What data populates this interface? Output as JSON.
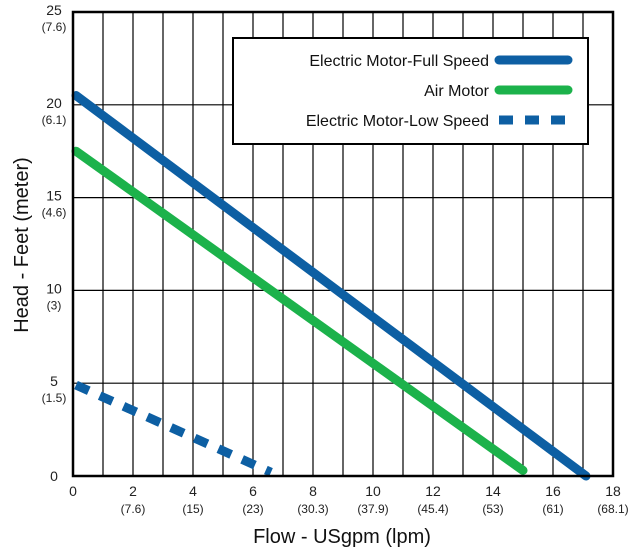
{
  "chart_data": {
    "type": "line",
    "xlabel": "Flow - USgpm (lpm)",
    "ylabel": "Head - Feet (meter)",
    "xlim": [
      0,
      18
    ],
    "ylim": [
      0,
      25
    ],
    "grid": true,
    "legend_position": "top-right",
    "x_ticks": [
      {
        "value": 0,
        "label": "0",
        "sub": ""
      },
      {
        "value": 2,
        "label": "2",
        "sub": "(7.6)"
      },
      {
        "value": 4,
        "label": "4",
        "sub": "(15)"
      },
      {
        "value": 6,
        "label": "6",
        "sub": "(23)"
      },
      {
        "value": 8,
        "label": "8",
        "sub": "(30.3)"
      },
      {
        "value": 10,
        "label": "10",
        "sub": "(37.9)"
      },
      {
        "value": 12,
        "label": "12",
        "sub": "(45.4)"
      },
      {
        "value": 14,
        "label": "14",
        "sub": "(53)"
      },
      {
        "value": 16,
        "label": "16",
        "sub": "(61)"
      },
      {
        "value": 18,
        "label": "18",
        "sub": "(68.1)"
      }
    ],
    "y_ticks": [
      {
        "value": 0,
        "label": "0",
        "sub": ""
      },
      {
        "value": 5,
        "label": "5",
        "sub": "(1.5)"
      },
      {
        "value": 10,
        "label": "10",
        "sub": "(3)"
      },
      {
        "value": 15,
        "label": "15",
        "sub": "(4.6)"
      },
      {
        "value": 20,
        "label": "20",
        "sub": "(6.1)"
      },
      {
        "value": 25,
        "label": "25",
        "sub": "(7.6)"
      }
    ],
    "series": [
      {
        "name": "Electric Motor-Full Speed",
        "color": "#0d5fa3",
        "dashed": false,
        "points": [
          [
            0.1,
            20.5
          ],
          [
            17.1,
            0
          ]
        ]
      },
      {
        "name": "Air Motor",
        "color": "#1cb24b",
        "dashed": false,
        "points": [
          [
            0.1,
            17.5
          ],
          [
            15.0,
            0.3
          ]
        ]
      },
      {
        "name": "Electric Motor-Low Speed",
        "color": "#0d5fa3",
        "dashed": true,
        "points": [
          [
            0.1,
            4.9
          ],
          [
            6.6,
            0.2
          ]
        ]
      }
    ]
  }
}
